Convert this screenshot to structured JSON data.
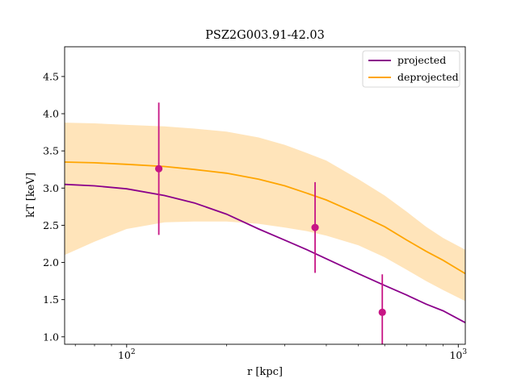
{
  "chart_data": {
    "type": "line",
    "title": "PSZ2G003.91-42.03",
    "xlabel": "r [kpc]",
    "ylabel": "kT [keV]",
    "xscale": "log",
    "xlim": [
      65,
      1050
    ],
    "ylim": [
      0.9,
      4.9
    ],
    "x_ticks": [
      {
        "value": 100,
        "label": "10",
        "exp": "2"
      },
      {
        "value": 1000,
        "label": "10",
        "exp": "3"
      }
    ],
    "x_minor_ticks": [
      70,
      80,
      90,
      200,
      300,
      400,
      500,
      600,
      700,
      800,
      900
    ],
    "y_ticks": [
      1.0,
      1.5,
      2.0,
      2.5,
      3.0,
      3.5,
      4.0,
      4.5
    ],
    "y_tick_labels": [
      "1.0",
      "1.5",
      "2.0",
      "2.5",
      "3.0",
      "3.5",
      "4.0",
      "4.5"
    ],
    "grid": false,
    "legend_position": "top-right",
    "colors": {
      "projected": "#8b008b",
      "deprojected": "#ffa500",
      "band": "#ffdba3",
      "points": "#c71585"
    },
    "series": [
      {
        "name": "projected",
        "x": [
          65,
          80,
          100,
          130,
          160,
          200,
          250,
          300,
          350,
          400,
          500,
          600,
          700,
          800,
          900,
          1050
        ],
        "y": [
          3.05,
          3.03,
          2.99,
          2.9,
          2.8,
          2.65,
          2.45,
          2.3,
          2.17,
          2.05,
          1.85,
          1.69,
          1.56,
          1.44,
          1.35,
          1.19
        ]
      },
      {
        "name": "deprojected",
        "x": [
          65,
          80,
          100,
          130,
          160,
          200,
          250,
          300,
          350,
          400,
          500,
          600,
          700,
          800,
          900,
          1050
        ],
        "y": [
          3.35,
          3.34,
          3.32,
          3.29,
          3.25,
          3.2,
          3.12,
          3.03,
          2.93,
          2.84,
          2.65,
          2.48,
          2.3,
          2.15,
          2.03,
          1.85
        ]
      }
    ],
    "band": {
      "series": "deprojected",
      "x": [
        65,
        80,
        100,
        130,
        160,
        200,
        250,
        300,
        350,
        400,
        500,
        600,
        700,
        800,
        900,
        1050
      ],
      "upper": [
        3.88,
        3.87,
        3.85,
        3.83,
        3.8,
        3.76,
        3.68,
        3.58,
        3.47,
        3.37,
        3.12,
        2.9,
        2.68,
        2.48,
        2.33,
        2.17
      ],
      "lower": [
        2.1,
        2.28,
        2.45,
        2.54,
        2.55,
        2.55,
        2.52,
        2.47,
        2.42,
        2.36,
        2.23,
        2.07,
        1.9,
        1.75,
        1.63,
        1.48
      ]
    },
    "points": {
      "x": [
        125,
        370,
        590
      ],
      "y": [
        3.26,
        2.47,
        1.33
      ],
      "yerr_low": [
        2.37,
        1.86,
        0.88
      ],
      "yerr_high": [
        4.15,
        3.08,
        1.84
      ]
    }
  }
}
